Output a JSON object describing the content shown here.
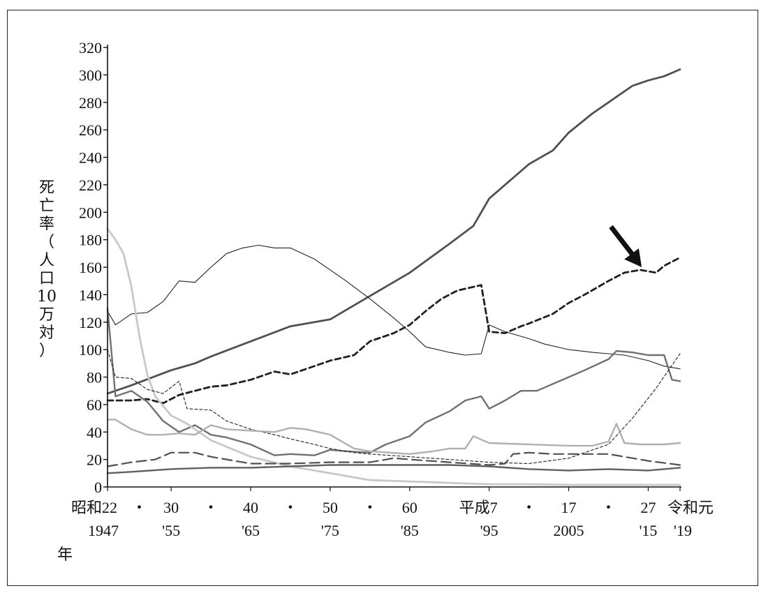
{
  "chart_data": {
    "type": "line",
    "y_axis": {
      "label_chars": [
        "死",
        "亡",
        "率",
        "（",
        "人",
        "口",
        "10",
        "万",
        "対",
        "）"
      ],
      "min": 0,
      "max": 320,
      "step": 20,
      "ticks": [
        "0",
        "20",
        "40",
        "60",
        "80",
        "100",
        "120",
        "140",
        "160",
        "180",
        "200",
        "220",
        "240",
        "260",
        "280",
        "300",
        "320"
      ]
    },
    "x_axis": {
      "range": [
        1947,
        2019
      ],
      "unit_label": "年",
      "ticks": [
        {
          "year": 1947,
          "top": "昭和22",
          "bottom": "1947"
        },
        {
          "year": 1951,
          "top": "・",
          "bottom": ""
        },
        {
          "year": 1955,
          "top": "30",
          "bottom": "'55"
        },
        {
          "year": 1960,
          "top": "・",
          "bottom": ""
        },
        {
          "year": 1965,
          "top": "40",
          "bottom": "'65"
        },
        {
          "year": 1970,
          "top": "・",
          "bottom": ""
        },
        {
          "year": 1975,
          "top": "50",
          "bottom": "'75"
        },
        {
          "year": 1980,
          "top": "・",
          "bottom": ""
        },
        {
          "year": 1985,
          "top": "60",
          "bottom": "'85"
        },
        {
          "year": 1995,
          "top": "平成7",
          "bottom": "'95"
        },
        {
          "year": 2000,
          "top": "・",
          "bottom": ""
        },
        {
          "year": 2005,
          "top": "17",
          "bottom": "2005"
        },
        {
          "year": 2010,
          "top": "・",
          "bottom": ""
        },
        {
          "year": 2015,
          "top": "27",
          "bottom": "'15"
        },
        {
          "year": 2019,
          "top": "令和元",
          "bottom": "'19"
        }
      ]
    },
    "grid": false,
    "legend": "none",
    "annotation": {
      "type": "arrow",
      "target_year": 2014,
      "target_value": 158
    },
    "series": [
      {
        "style": "thick-solid",
        "color": "#505050",
        "points": [
          [
            1947,
            68
          ],
          [
            1950,
            74
          ],
          [
            1955,
            85
          ],
          [
            1958,
            90
          ],
          [
            1960,
            95
          ],
          [
            1965,
            106
          ],
          [
            1970,
            117
          ],
          [
            1975,
            122
          ],
          [
            1980,
            139
          ],
          [
            1985,
            156
          ],
          [
            1990,
            177
          ],
          [
            1993,
            190
          ],
          [
            1995,
            210
          ],
          [
            1997,
            220
          ],
          [
            2000,
            235
          ],
          [
            2003,
            245
          ],
          [
            2005,
            258
          ],
          [
            2008,
            272
          ],
          [
            2010,
            280
          ],
          [
            2013,
            292
          ],
          [
            2015,
            296
          ],
          [
            2017,
            299
          ],
          [
            2019,
            304
          ]
        ]
      },
      {
        "style": "thick-dashed",
        "color": "#202020",
        "points": [
          [
            1947,
            63
          ],
          [
            1950,
            63
          ],
          [
            1952,
            64
          ],
          [
            1954,
            61
          ],
          [
            1956,
            67
          ],
          [
            1958,
            70
          ],
          [
            1960,
            73
          ],
          [
            1962,
            74
          ],
          [
            1965,
            78
          ],
          [
            1968,
            84
          ],
          [
            1970,
            82
          ],
          [
            1975,
            92
          ],
          [
            1978,
            96
          ],
          [
            1980,
            106
          ],
          [
            1983,
            112
          ],
          [
            1985,
            118
          ],
          [
            1987,
            128
          ],
          [
            1989,
            137
          ],
          [
            1991,
            143
          ],
          [
            1994,
            147
          ],
          [
            1995,
            113
          ],
          [
            1997,
            112
          ],
          [
            1999,
            117
          ],
          [
            2000,
            119
          ],
          [
            2003,
            126
          ],
          [
            2005,
            134
          ],
          [
            2007,
            140
          ],
          [
            2010,
            150
          ],
          [
            2012,
            156
          ],
          [
            2014,
            158
          ],
          [
            2016,
            156
          ],
          [
            2017,
            161
          ],
          [
            2019,
            167
          ]
        ]
      },
      {
        "style": "thin-solid",
        "color": "#202020",
        "points": [
          [
            1947,
            128
          ],
          [
            1948,
            118
          ],
          [
            1950,
            126
          ],
          [
            1952,
            127
          ],
          [
            1954,
            135
          ],
          [
            1956,
            150
          ],
          [
            1958,
            149
          ],
          [
            1960,
            160
          ],
          [
            1962,
            170
          ],
          [
            1964,
            174
          ],
          [
            1966,
            176
          ],
          [
            1968,
            174
          ],
          [
            1970,
            174
          ],
          [
            1973,
            166
          ],
          [
            1975,
            158
          ],
          [
            1977,
            150
          ],
          [
            1980,
            137
          ],
          [
            1983,
            123
          ],
          [
            1985,
            113
          ],
          [
            1987,
            102
          ],
          [
            1990,
            98
          ],
          [
            1992,
            96
          ],
          [
            1994,
            97
          ],
          [
            1995,
            118
          ],
          [
            1997,
            113
          ],
          [
            2000,
            108
          ],
          [
            2002,
            104
          ],
          [
            2005,
            100
          ],
          [
            2008,
            98
          ],
          [
            2010,
            97
          ],
          [
            2012,
            96
          ],
          [
            2015,
            92
          ],
          [
            2017,
            88
          ],
          [
            2019,
            86
          ]
        ]
      },
      {
        "style": "medium-solid",
        "color": "#707070",
        "points": [
          [
            1947,
            130
          ],
          [
            1948,
            66
          ],
          [
            1950,
            70
          ],
          [
            1952,
            62
          ],
          [
            1954,
            48
          ],
          [
            1956,
            40
          ],
          [
            1958,
            45
          ],
          [
            1960,
            38
          ],
          [
            1962,
            36
          ],
          [
            1965,
            31
          ],
          [
            1968,
            23
          ],
          [
            1970,
            24
          ],
          [
            1973,
            23
          ],
          [
            1975,
            27
          ],
          [
            1977,
            26
          ],
          [
            1980,
            25
          ],
          [
            1982,
            31
          ],
          [
            1985,
            37
          ],
          [
            1987,
            47
          ],
          [
            1990,
            55
          ],
          [
            1992,
            63
          ],
          [
            1994,
            66
          ],
          [
            1995,
            57
          ],
          [
            1997,
            63
          ],
          [
            1999,
            70
          ],
          [
            2001,
            70
          ],
          [
            2003,
            75
          ],
          [
            2005,
            80
          ],
          [
            2007,
            85
          ],
          [
            2010,
            93
          ],
          [
            2011,
            99
          ],
          [
            2013,
            98
          ],
          [
            2015,
            96
          ],
          [
            2017,
            96
          ],
          [
            2018,
            78
          ],
          [
            2019,
            77
          ]
        ]
      },
      {
        "style": "thick-solid",
        "color": "#c8c8c8",
        "points": [
          [
            1947,
            188
          ],
          [
            1948,
            180
          ],
          [
            1949,
            170
          ],
          [
            1950,
            146
          ],
          [
            1951,
            110
          ],
          [
            1952,
            82
          ],
          [
            1953,
            66
          ],
          [
            1955,
            52
          ],
          [
            1957,
            46
          ],
          [
            1960,
            34
          ],
          [
            1965,
            22
          ],
          [
            1970,
            15
          ],
          [
            1975,
            10
          ],
          [
            1980,
            5
          ],
          [
            1985,
            4
          ],
          [
            1990,
            3
          ],
          [
            1995,
            2
          ],
          [
            2000,
            2
          ],
          [
            2005,
            1.5
          ],
          [
            2010,
            1.5
          ],
          [
            2015,
            1.5
          ],
          [
            2019,
            1.5
          ]
        ]
      },
      {
        "style": "thin-dashed",
        "color": "#202020",
        "points": [
          [
            1947,
            100
          ],
          [
            1948,
            80
          ],
          [
            1950,
            79
          ],
          [
            1952,
            71
          ],
          [
            1954,
            68
          ],
          [
            1956,
            77
          ],
          [
            1957,
            57
          ],
          [
            1960,
            56
          ],
          [
            1962,
            48
          ],
          [
            1965,
            42
          ],
          [
            1968,
            38
          ],
          [
            1970,
            35
          ],
          [
            1973,
            31
          ],
          [
            1975,
            28
          ],
          [
            1978,
            25
          ],
          [
            1980,
            24
          ],
          [
            1985,
            22
          ],
          [
            1990,
            20
          ],
          [
            1995,
            18
          ],
          [
            2000,
            17
          ],
          [
            2005,
            21
          ],
          [
            2010,
            31
          ],
          [
            2013,
            50
          ],
          [
            2016,
            72
          ],
          [
            2019,
            97
          ]
        ]
      },
      {
        "style": "medium-solid",
        "color": "#b0b0b0",
        "points": [
          [
            1947,
            49
          ],
          [
            1948,
            49
          ],
          [
            1950,
            42
          ],
          [
            1952,
            38
          ],
          [
            1954,
            38
          ],
          [
            1956,
            39
          ],
          [
            1958,
            38
          ],
          [
            1960,
            45
          ],
          [
            1962,
            42
          ],
          [
            1965,
            41
          ],
          [
            1968,
            40
          ],
          [
            1970,
            43
          ],
          [
            1972,
            42
          ],
          [
            1975,
            38
          ],
          [
            1978,
            28
          ],
          [
            1980,
            26
          ],
          [
            1985,
            24
          ],
          [
            1988,
            26
          ],
          [
            1990,
            28
          ],
          [
            1992,
            28
          ],
          [
            1993,
            37
          ],
          [
            1995,
            32
          ],
          [
            2000,
            31
          ],
          [
            2005,
            30
          ],
          [
            2008,
            30
          ],
          [
            2010,
            33
          ],
          [
            2011,
            46
          ],
          [
            2012,
            32
          ],
          [
            2014,
            31
          ],
          [
            2017,
            31
          ],
          [
            2019,
            32
          ]
        ]
      },
      {
        "style": "medium-dashed",
        "color": "#505050",
        "points": [
          [
            1947,
            15
          ],
          [
            1950,
            18
          ],
          [
            1953,
            20
          ],
          [
            1955,
            25
          ],
          [
            1958,
            25
          ],
          [
            1960,
            22
          ],
          [
            1965,
            17
          ],
          [
            1970,
            17
          ],
          [
            1975,
            18
          ],
          [
            1980,
            18
          ],
          [
            1983,
            21
          ],
          [
            1985,
            20
          ],
          [
            1990,
            18
          ],
          [
            1995,
            16
          ],
          [
            1997,
            17
          ],
          [
            1998,
            24
          ],
          [
            2000,
            25
          ],
          [
            2003,
            24
          ],
          [
            2005,
            24
          ],
          [
            2010,
            24
          ],
          [
            2015,
            19
          ],
          [
            2019,
            16
          ]
        ]
      },
      {
        "style": "medium-solid",
        "color": "#606060",
        "points": [
          [
            1947,
            10
          ],
          [
            1950,
            11
          ],
          [
            1955,
            13
          ],
          [
            1960,
            14
          ],
          [
            1965,
            14
          ],
          [
            1970,
            15
          ],
          [
            1975,
            16
          ],
          [
            1980,
            16
          ],
          [
            1985,
            16
          ],
          [
            1990,
            16
          ],
          [
            1995,
            15
          ],
          [
            2000,
            13
          ],
          [
            2005,
            12
          ],
          [
            2010,
            13
          ],
          [
            2015,
            12
          ],
          [
            2019,
            14
          ]
        ]
      }
    ]
  }
}
